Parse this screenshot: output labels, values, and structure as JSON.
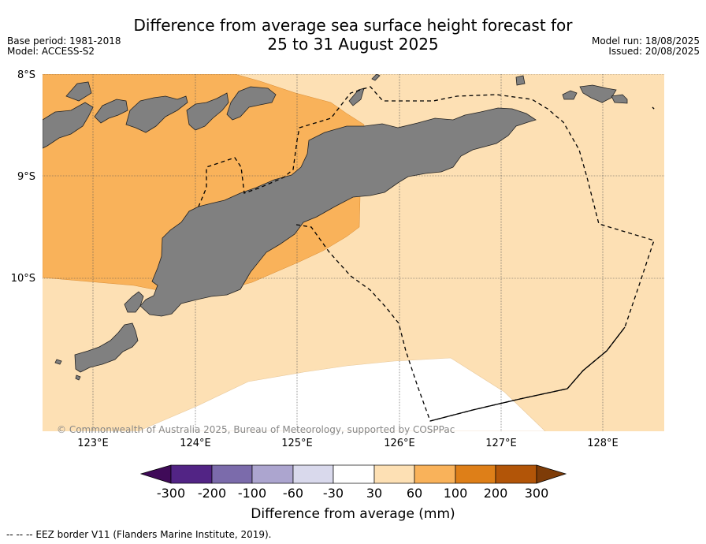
{
  "title": {
    "line1": "Difference from average sea surface height forecast for",
    "line2": "25 to 31 August 2025"
  },
  "meta_left": {
    "base_period": "Base period: 1981-2018",
    "model": "Model: ACCESS-S2"
  },
  "meta_right": {
    "model_run": "Model run: 18/08/2025",
    "issued": "Issued: 20/08/2025"
  },
  "map": {
    "lat_labels": [
      "8°S",
      "9°S",
      "10°S"
    ],
    "lon_labels": [
      "123°E",
      "124°E",
      "125°E",
      "126°E",
      "127°E",
      "128°E"
    ],
    "copyright": "© Commonwealth of Australia 2025, Bureau of Meteorology, supported by COSPPac",
    "colors": {
      "land": "#808080",
      "fill_30_60": "#fde0b4",
      "fill_60_100": "#f9b25a",
      "fill_neutral": "#ffffff"
    }
  },
  "colorbar": {
    "title": "Difference from average (mm)",
    "tick_labels": [
      "-300",
      "-200",
      "-100",
      "-60",
      "-30",
      "30",
      "60",
      "100",
      "200",
      "300"
    ],
    "colors": [
      "#3f0a58",
      "#522485",
      "#7b6bab",
      "#aca5cf",
      "#d9d9ec",
      "#ffffff",
      "#fde0b4",
      "#f9b25a",
      "#de7f18",
      "#b25508",
      "#7e3c08"
    ]
  },
  "footnote": "--  --  -- EEZ border V11 (Flanders Marine Institute, 2019)."
}
